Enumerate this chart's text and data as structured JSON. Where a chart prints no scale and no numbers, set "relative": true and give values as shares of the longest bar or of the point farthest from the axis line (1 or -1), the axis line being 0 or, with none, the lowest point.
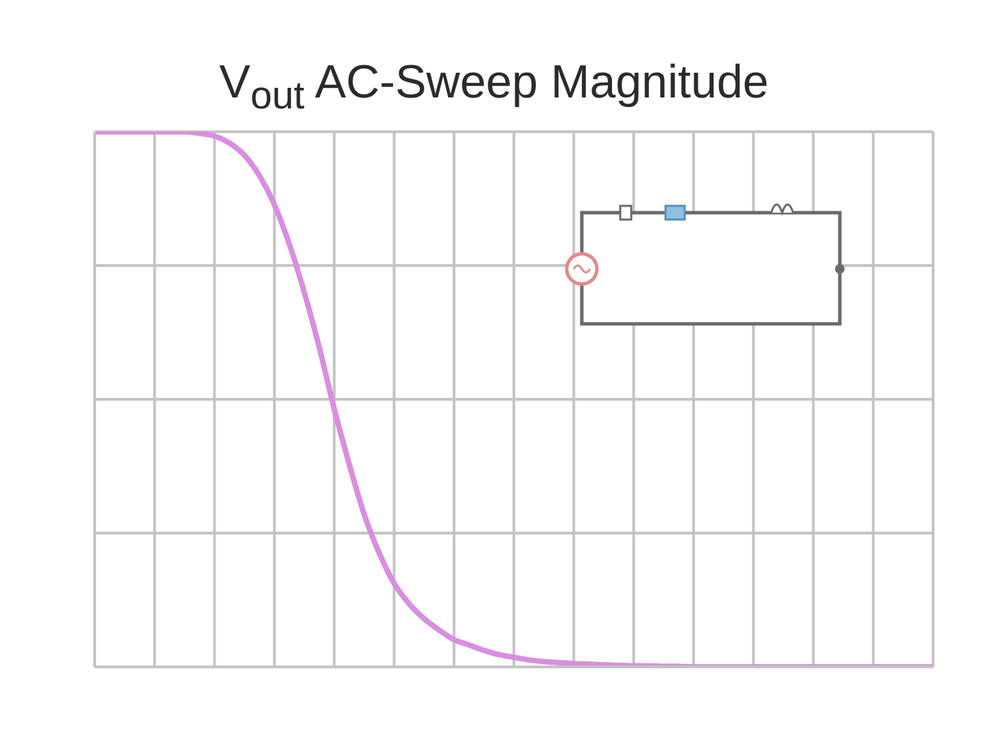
{
  "chart_data": {
    "type": "line",
    "title": "V$_{out}$ AC-Sweep Magnitude",
    "categories": [
      null,
      null,
      null,
      null,
      null,
      null,
      null,
      null,
      null,
      null,
      null,
      null,
      null,
      null,
      null,
      null,
      null,
      null,
      null,
      null,
      null,
      null,
      null,
      null,
      null,
      null,
      null,
      null,
      null,
      null,
      null,
      null,
      null,
      null,
      null,
      null,
      null,
      null,
      null,
      null,
      null,
      null,
      null,
      null,
      null,
      null,
      null,
      null,
      null,
      null,
      null,
      null,
      null,
      null,
      null,
      null,
      null
    ],
    "values": [
      1,
      1,
      1,
      1,
      1,
      1,
      1,
      0.997,
      0.992,
      0.979,
      0.956,
      0.918,
      0.864,
      0.79,
      0.7,
      0.597,
      0.482,
      0.379,
      0.285,
      0.213,
      0.156,
      0.118,
      0.09,
      0.069,
      0.051,
      0.041,
      0.031,
      0.023,
      0.018,
      0.013,
      0.01,
      0.008,
      0.006,
      0.005,
      0.004,
      0.003,
      0.002,
      0.002,
      0.001,
      0.001,
      0,
      0,
      0,
      0,
      0,
      0,
      0,
      0,
      0,
      0,
      0,
      0,
      0,
      0,
      0,
      0,
      0
    ],
    "color": "#d98ee0",
    "relative": true,
    "grid": true
  }
}
